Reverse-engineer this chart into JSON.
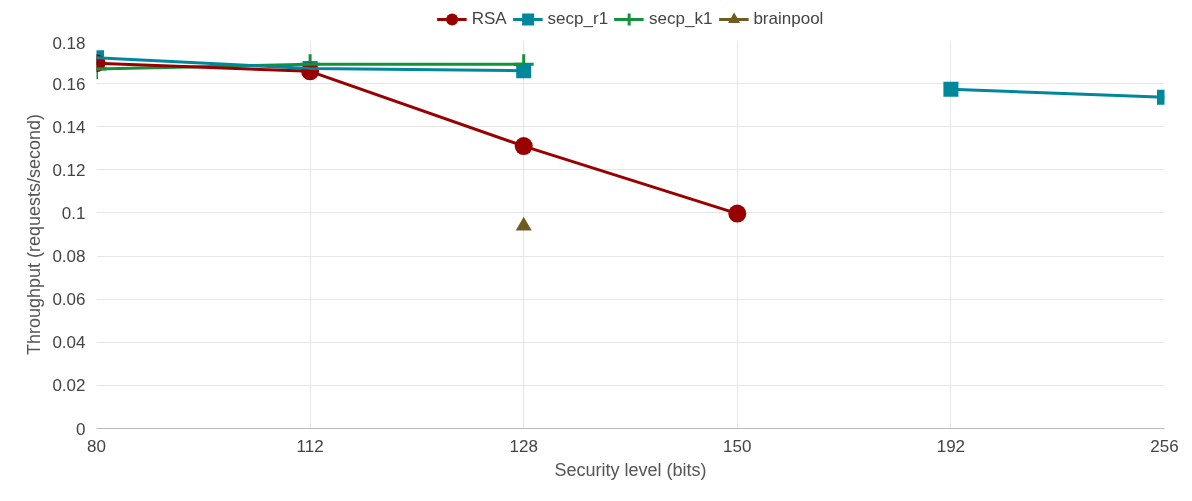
{
  "chart_data": {
    "type": "line",
    "xlabel": "Security level (bits)",
    "ylabel": "Throughput (requests/second)",
    "categories": [
      "80",
      "112",
      "128",
      "150",
      "192",
      "256"
    ],
    "series": [
      {
        "name": "RSA",
        "color": "#990000",
        "marker": "circle",
        "values": [
          0.1695,
          0.1657,
          0.131,
          0.0997,
          null,
          null
        ]
      },
      {
        "name": "secp_r1",
        "color": "#00879c",
        "marker": "square",
        "values": [
          0.172,
          0.167,
          0.166,
          null,
          0.1574,
          0.1537
        ]
      },
      {
        "name": "secp_k1",
        "color": "#12923a",
        "marker": "cross",
        "values": [
          0.1668,
          0.169,
          0.169,
          null,
          null,
          null
        ]
      },
      {
        "name": "brainpool",
        "color": "#705c23",
        "marker": "triangle",
        "values": [
          null,
          null,
          0.094,
          null,
          null,
          null
        ]
      }
    ],
    "ylim": [
      0,
      0.18
    ],
    "yticks": [
      0,
      0.02,
      0.04,
      0.06,
      0.08,
      0.1,
      0.12,
      0.14,
      0.16,
      0.18
    ],
    "grid": true,
    "legend": "top"
  }
}
